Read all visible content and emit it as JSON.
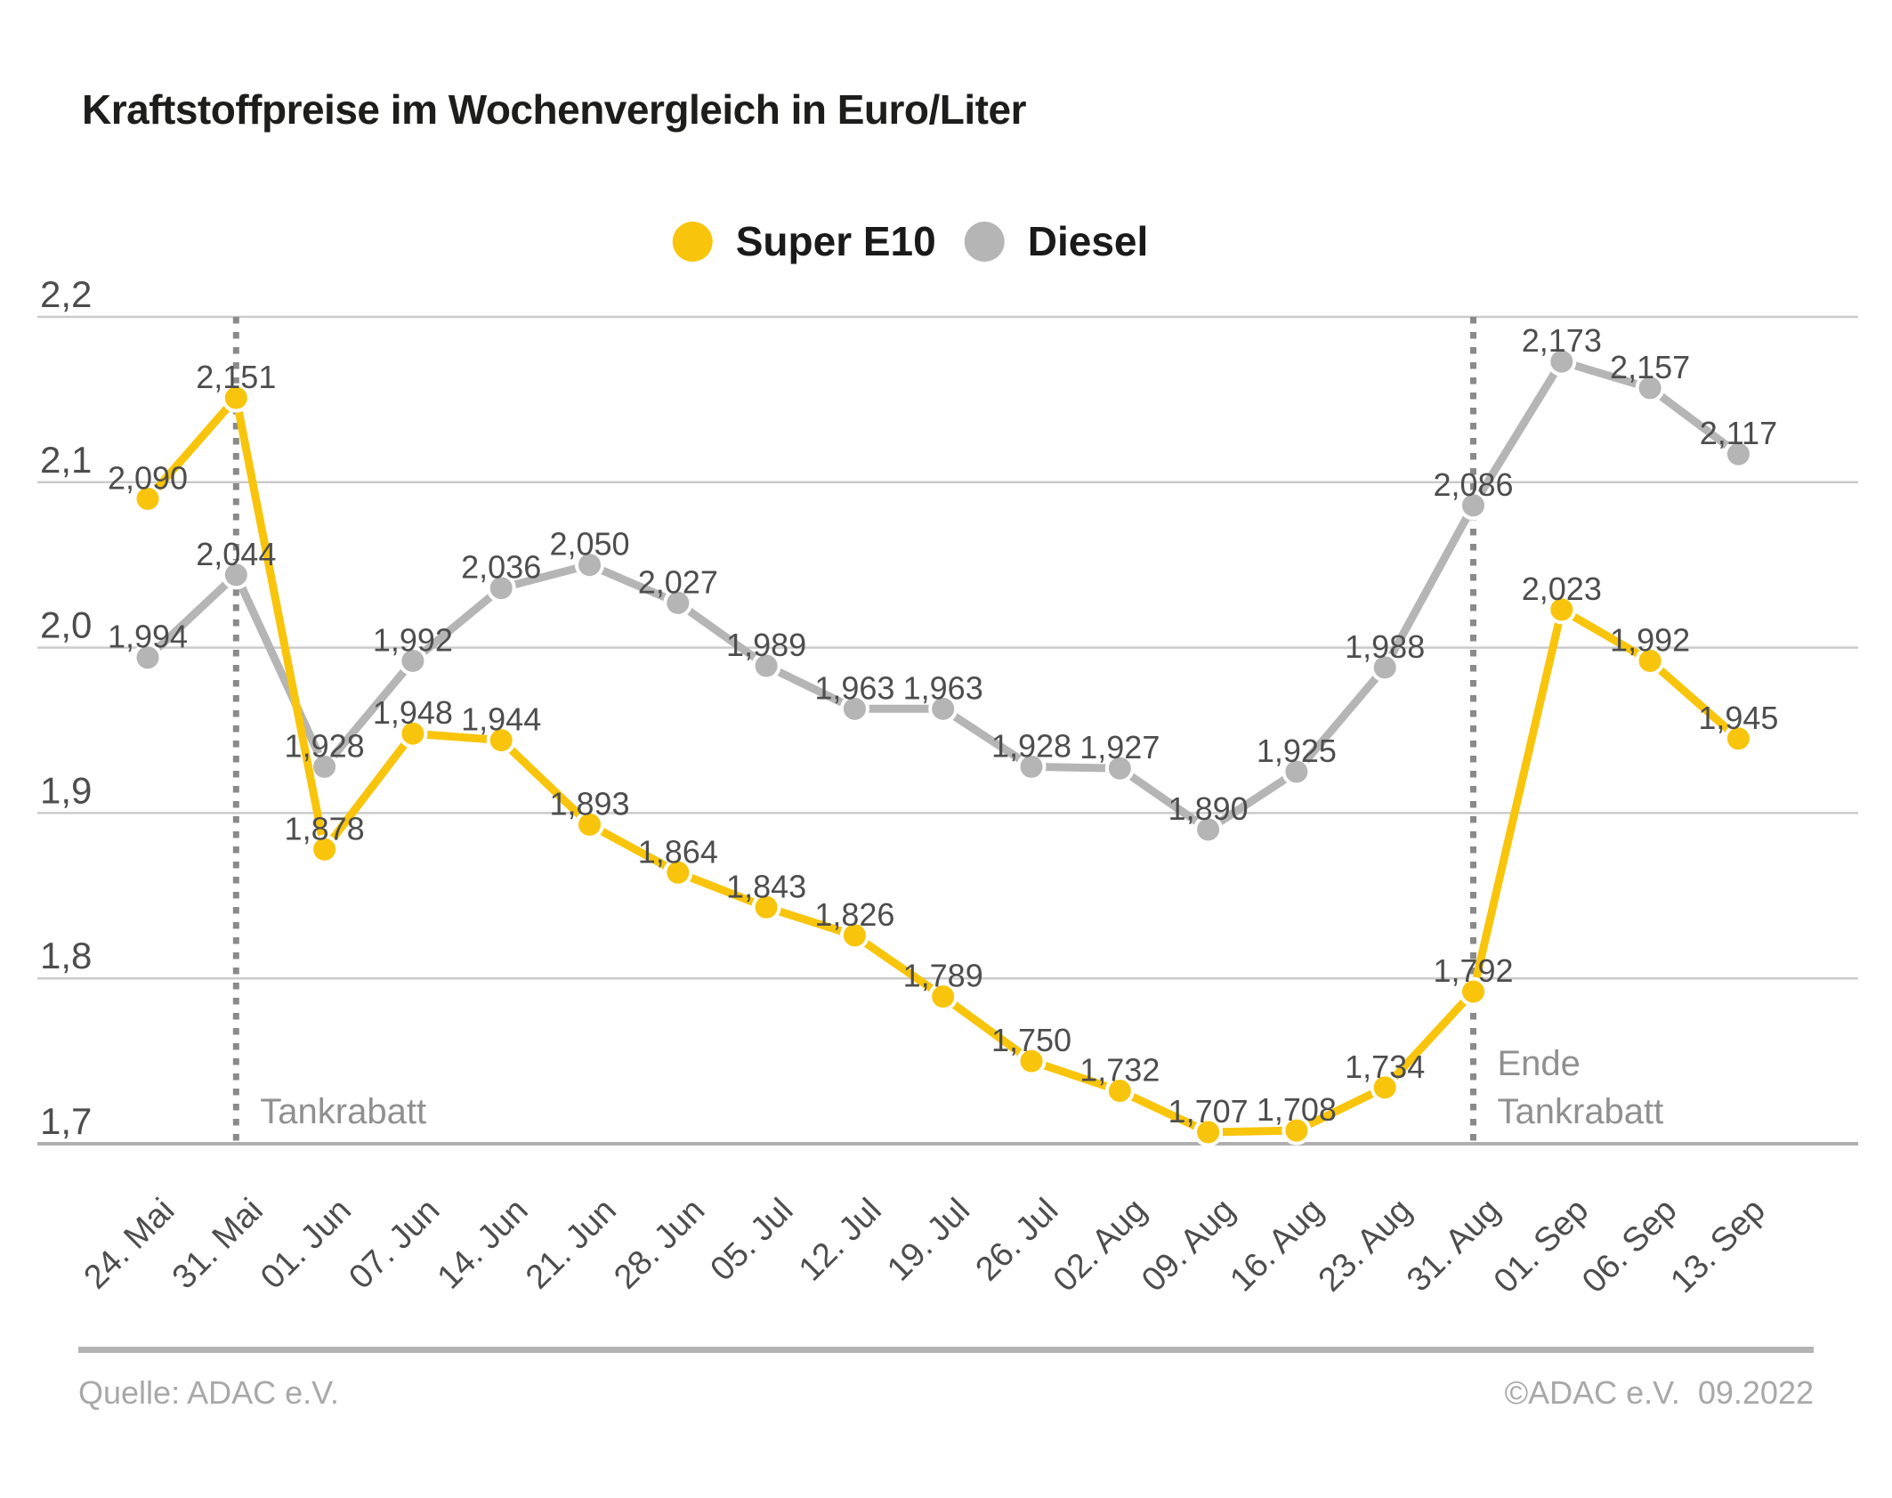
{
  "title": "Kraftstoffpreise im Wochenvergleich in Euro/Liter",
  "legend": {
    "items": [
      {
        "label": "Super E10",
        "color": "#F8C50C"
      },
      {
        "label": "Diesel",
        "color": "#B5B5B5"
      }
    ]
  },
  "footer": {
    "source": "Quelle: ADAC e.V.",
    "copyright": "©ADAC e.V.  09.2022"
  },
  "chart_data": {
    "type": "line",
    "title": "Kraftstoffpreise im Wochenvergleich in Euro/Liter",
    "categories": [
      "24. Mai",
      "31. Mai",
      "01. Jun",
      "07. Jun",
      "14. Jun",
      "21. Jun",
      "28. Jun",
      "05. Jul",
      "12. Jul",
      "19. Jul",
      "26. Jul",
      "02. Aug",
      "09. Aug",
      "16. Aug",
      "23. Aug",
      "31. Aug",
      "01. Sep",
      "06. Sep",
      "13. Sep"
    ],
    "series": [
      {
        "name": "Super E10",
        "color": "#F8C50C",
        "values": [
          2.09,
          2.151,
          1.878,
          1.948,
          1.944,
          1.893,
          1.864,
          1.843,
          1.826,
          1.789,
          1.75,
          1.732,
          1.707,
          1.708,
          1.734,
          1.792,
          2.023,
          1.992,
          1.945
        ]
      },
      {
        "name": "Diesel",
        "color": "#B5B5B5",
        "values": [
          1.994,
          2.044,
          1.928,
          1.992,
          2.036,
          2.05,
          2.027,
          1.989,
          1.963,
          1.963,
          1.928,
          1.927,
          1.89,
          1.925,
          1.988,
          2.086,
          2.173,
          2.157,
          2.117
        ]
      }
    ],
    "ylim": [
      1.7,
      2.2
    ],
    "y_ticks": [
      2.2,
      2.1,
      2.0,
      1.9,
      1.8,
      1.7
    ],
    "value_label_decimal": "comma",
    "value_label_precision": 3,
    "grid": "horizontal",
    "legend_position": "top-center",
    "annotations": [
      {
        "category": "31. Mai",
        "category_index": 1,
        "lines": [
          "Tankrabatt"
        ]
      },
      {
        "category": "31. Aug",
        "category_index": 15,
        "lines": [
          "Ende",
          "Tankrabatt"
        ]
      }
    ],
    "colors": {
      "grid_line": "#CBCBCB",
      "axis_line": "#AFAFAF",
      "dotted_marker_line": "#8A8A8A",
      "annotation_text": "#909090",
      "label_text": "#4D4D4D"
    }
  }
}
